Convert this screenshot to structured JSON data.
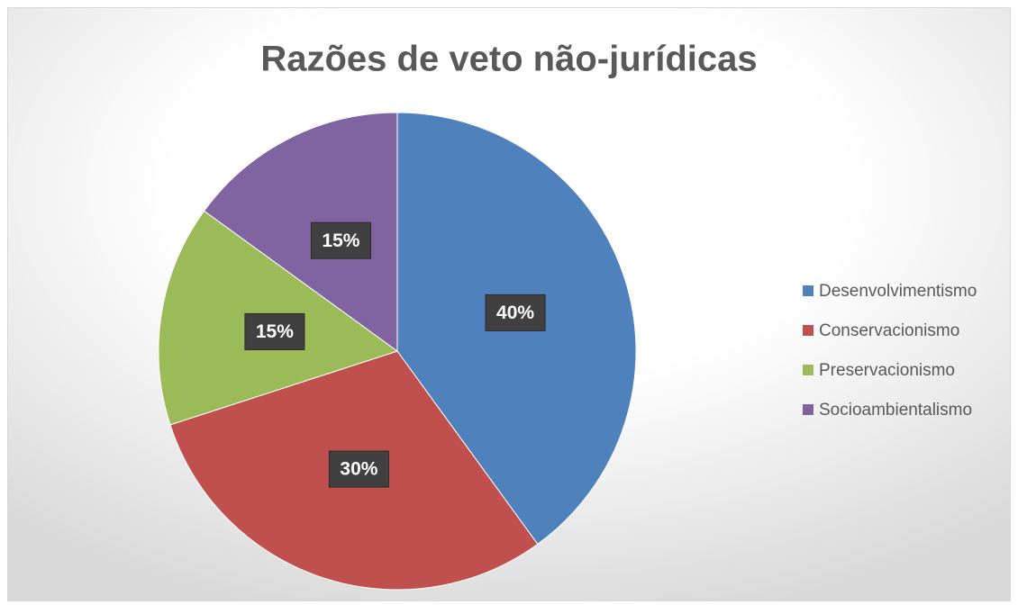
{
  "chart_data": {
    "type": "pie",
    "title": "Razões de veto não-jurídicas",
    "categories": [
      "Desenvolvimentismo",
      "Conservacionismo",
      "Preservacionismo",
      "Socioambientalismo"
    ],
    "values": [
      40,
      30,
      15,
      15
    ],
    "value_labels": [
      "40%",
      "30%",
      "15%",
      "15%"
    ],
    "colors": [
      "#4f81bd",
      "#c0504d",
      "#9bbb59",
      "#8064a2"
    ],
    "legend": "right"
  }
}
